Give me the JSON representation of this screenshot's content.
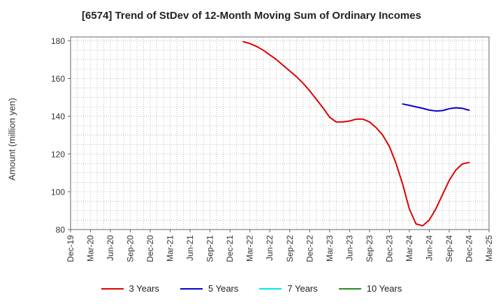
{
  "chart_data": {
    "type": "line",
    "title": "[6574]  Trend of StDev of 12-Month Moving Sum of Ordinary Incomes",
    "xlabel": "",
    "ylabel": "Amount (million yen)",
    "ylim": [
      80,
      182
    ],
    "yticks": [
      80,
      100,
      120,
      140,
      160,
      180
    ],
    "grid": true,
    "legend_position": "bottom",
    "x_tick_labels": [
      "Dec-19",
      "Mar-20",
      "Jun-20",
      "Sep-20",
      "Dec-20",
      "Mar-21",
      "Jun-21",
      "Sep-21",
      "Dec-21",
      "Mar-22",
      "Jun-22",
      "Sep-22",
      "Dec-22",
      "Mar-23",
      "Jun-23",
      "Sep-23",
      "Dec-23",
      "Mar-24",
      "Jun-24",
      "Sep-24",
      "Dec-24",
      "Mar-25"
    ],
    "series": [
      {
        "name": "3 Years",
        "color": "#dd0000",
        "x": [
          "Feb-22",
          "Mar-22",
          "Apr-22",
          "May-22",
          "Jun-22",
          "Jul-22",
          "Aug-22",
          "Sep-22",
          "Oct-22",
          "Nov-22",
          "Dec-22",
          "Jan-23",
          "Feb-23",
          "Mar-23",
          "Apr-23",
          "May-23",
          "Jun-23",
          "Jul-23",
          "Aug-23",
          "Sep-23",
          "Oct-23",
          "Nov-23",
          "Dec-23",
          "Jan-24",
          "Feb-24",
          "Mar-24",
          "Apr-24",
          "May-24",
          "Jun-24",
          "Jul-24",
          "Aug-24",
          "Sep-24",
          "Oct-24",
          "Nov-24",
          "Dec-24"
        ],
        "values": [
          179.5,
          178.5,
          177,
          175,
          172.5,
          170,
          167,
          164,
          161,
          157.5,
          153.5,
          149,
          144.5,
          139.5,
          137,
          137,
          137.5,
          138.5,
          138.5,
          137,
          134,
          130,
          124,
          115,
          104,
          91,
          83,
          82,
          85,
          91,
          98.5,
          106,
          111.5,
          114.8,
          115.5
        ]
      },
      {
        "name": "5 Years",
        "color": "#0000cc",
        "x": [
          "Feb-24",
          "Mar-24",
          "Apr-24",
          "May-24",
          "Jun-24",
          "Jul-24",
          "Aug-24",
          "Sep-24",
          "Oct-24",
          "Nov-24",
          "Dec-24"
        ],
        "values": [
          146.5,
          145.8,
          145,
          144.2,
          143.3,
          142.8,
          143,
          144,
          144.5,
          144.2,
          143.2
        ]
      },
      {
        "name": "7 Years",
        "color": "#00e5ee",
        "x": [],
        "values": []
      },
      {
        "name": "10 Years",
        "color": "#228b22",
        "x": [],
        "values": []
      }
    ]
  }
}
